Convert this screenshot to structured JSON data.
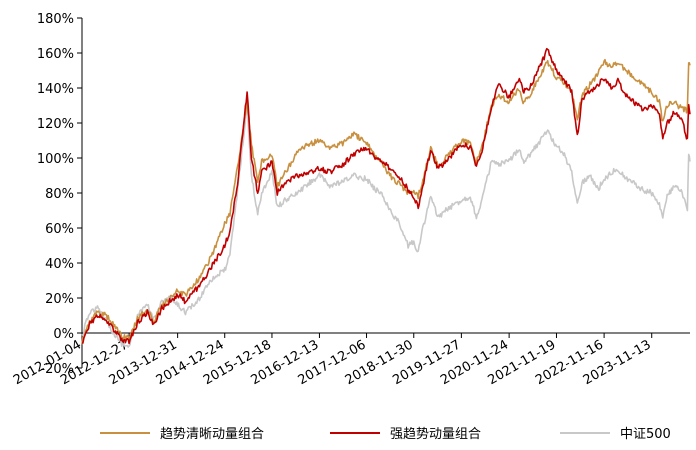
{
  "chart_data": {
    "type": "line",
    "title": "",
    "xlabel": "",
    "ylabel": "",
    "ylim": [
      -0.2,
      1.8
    ],
    "y_ticks": [
      -0.2,
      0.0,
      0.2,
      0.4,
      0.6,
      0.8,
      1.0,
      1.2,
      1.4,
      1.6,
      1.8
    ],
    "y_tick_labels": [
      "-20%",
      "0%",
      "20%",
      "40%",
      "60%",
      "80%",
      "100%",
      "120%",
      "140%",
      "160%",
      "180%"
    ],
    "x_range": [
      "2012-01-04",
      "2024-08-30"
    ],
    "x_tick_labels": [
      "2012-01-04",
      "2012-12-27",
      "2013-12-31",
      "2014-12-24",
      "2015-12-18",
      "2016-12-13",
      "2017-12-06",
      "2018-11-30",
      "2019-11-27",
      "2020-11-24",
      "2021-11-19",
      "2022-11-16",
      "2023-11-13"
    ],
    "grid": false,
    "legend_position": "bottom",
    "series": [
      {
        "name": "趋势清晰动量组合",
        "color": "#C8903F",
        "x": [
          "2012-01-04",
          "2012-03-01",
          "2012-05-01",
          "2012-07-01",
          "2012-09-01",
          "2012-11-01",
          "2012-12-27",
          "2013-03-01",
          "2013-05-15",
          "2013-07-01",
          "2013-09-01",
          "2013-11-01",
          "2013-12-31",
          "2014-03-01",
          "2014-06-01",
          "2014-09-01",
          "2014-12-24",
          "2015-02-01",
          "2015-04-01",
          "2015-06-12",
          "2015-07-15",
          "2015-09-01",
          "2015-10-01",
          "2015-12-18",
          "2016-01-28",
          "2016-04-01",
          "2016-07-01",
          "2016-10-01",
          "2016-12-13",
          "2017-03-01",
          "2017-06-01",
          "2017-09-01",
          "2017-12-06",
          "2018-02-09",
          "2018-04-01",
          "2018-06-01",
          "2018-08-01",
          "2018-10-18",
          "2018-11-30",
          "2019-01-03",
          "2019-02-01",
          "2019-04-08",
          "2019-06-01",
          "2019-08-01",
          "2019-11-27",
          "2020-02-03",
          "2020-03-20",
          "2020-05-01",
          "2020-07-13",
          "2020-09-01",
          "2020-11-24",
          "2021-02-10",
          "2021-03-10",
          "2021-05-01",
          "2021-07-01",
          "2021-09-13",
          "2021-11-19",
          "2022-01-04",
          "2022-03-15",
          "2022-04-26",
          "2022-06-01",
          "2022-08-01",
          "2022-10-01",
          "2022-11-16",
          "2023-01-15",
          "2023-03-01",
          "2023-05-01",
          "2023-07-01",
          "2023-09-01",
          "2023-11-13",
          "2024-01-10",
          "2024-02-05",
          "2024-03-10",
          "2024-05-01",
          "2024-07-01",
          "2024-08-10",
          "2024-08-20",
          "2024-08-30"
        ],
        "values": [
          -0.05,
          0.06,
          0.12,
          0.1,
          0.05,
          -0.02,
          -0.03,
          0.08,
          0.14,
          0.06,
          0.16,
          0.2,
          0.24,
          0.22,
          0.3,
          0.42,
          0.62,
          0.68,
          0.95,
          1.32,
          1.08,
          0.86,
          0.98,
          1.02,
          0.84,
          0.92,
          1.04,
          1.08,
          1.1,
          1.06,
          1.08,
          1.14,
          1.08,
          1.02,
          0.98,
          0.9,
          0.86,
          0.8,
          0.82,
          0.78,
          0.86,
          1.05,
          0.96,
          1.0,
          1.1,
          1.08,
          0.98,
          1.06,
          1.3,
          1.36,
          1.32,
          1.4,
          1.32,
          1.36,
          1.45,
          1.55,
          1.46,
          1.44,
          1.38,
          1.22,
          1.36,
          1.42,
          1.48,
          1.55,
          1.52,
          1.55,
          1.5,
          1.46,
          1.42,
          1.38,
          1.32,
          1.2,
          1.3,
          1.32,
          1.28,
          1.27,
          1.55,
          1.53
        ]
      },
      {
        "name": "强趋势动量组合",
        "color": "#C00000",
        "x": [
          "2012-01-04",
          "2012-03-01",
          "2012-05-01",
          "2012-07-01",
          "2012-09-01",
          "2012-11-01",
          "2012-12-27",
          "2013-03-01",
          "2013-05-15",
          "2013-07-01",
          "2013-09-01",
          "2013-11-01",
          "2013-12-31",
          "2014-03-01",
          "2014-06-01",
          "2014-09-01",
          "2014-12-24",
          "2015-02-01",
          "2015-04-01",
          "2015-06-12",
          "2015-07-15",
          "2015-09-01",
          "2015-10-01",
          "2015-12-18",
          "2016-01-28",
          "2016-04-01",
          "2016-07-01",
          "2016-10-01",
          "2016-12-13",
          "2017-03-01",
          "2017-06-01",
          "2017-09-01",
          "2017-12-06",
          "2018-02-09",
          "2018-04-01",
          "2018-06-01",
          "2018-08-01",
          "2018-10-18",
          "2018-11-30",
          "2019-01-03",
          "2019-02-01",
          "2019-04-08",
          "2019-06-01",
          "2019-08-01",
          "2019-11-27",
          "2020-02-03",
          "2020-03-20",
          "2020-05-01",
          "2020-07-13",
          "2020-09-01",
          "2020-11-24",
          "2021-02-10",
          "2021-03-10",
          "2021-05-01",
          "2021-07-01",
          "2021-09-13",
          "2021-11-19",
          "2022-01-04",
          "2022-03-15",
          "2022-04-26",
          "2022-06-01",
          "2022-08-01",
          "2022-10-01",
          "2022-11-16",
          "2023-01-15",
          "2023-03-01",
          "2023-05-01",
          "2023-07-01",
          "2023-09-01",
          "2023-11-13",
          "2024-01-10",
          "2024-02-05",
          "2024-03-10",
          "2024-05-01",
          "2024-07-01",
          "2024-08-10",
          "2024-08-20",
          "2024-08-30"
        ],
        "values": [
          -0.06,
          0.05,
          0.1,
          0.08,
          0.02,
          -0.04,
          -0.05,
          0.06,
          0.12,
          0.04,
          0.14,
          0.18,
          0.22,
          0.18,
          0.26,
          0.36,
          0.5,
          0.58,
          0.86,
          1.38,
          1.0,
          0.8,
          0.92,
          0.98,
          0.8,
          0.86,
          0.9,
          0.92,
          0.94,
          0.92,
          0.96,
          1.02,
          1.06,
          1.0,
          0.98,
          0.94,
          0.9,
          0.82,
          0.78,
          0.72,
          0.82,
          1.05,
          0.94,
          0.98,
          1.08,
          1.06,
          0.96,
          1.04,
          1.3,
          1.42,
          1.35,
          1.45,
          1.38,
          1.4,
          1.5,
          1.62,
          1.5,
          1.46,
          1.38,
          1.12,
          1.34,
          1.38,
          1.42,
          1.45,
          1.4,
          1.44,
          1.36,
          1.32,
          1.28,
          1.3,
          1.24,
          1.12,
          1.2,
          1.26,
          1.22,
          1.1,
          1.3,
          1.25
        ]
      },
      {
        "name": "中证500",
        "color": "#C8C8C8",
        "x": [
          "2012-01-04",
          "2012-03-01",
          "2012-05-01",
          "2012-07-01",
          "2012-09-01",
          "2012-11-01",
          "2012-12-27",
          "2013-03-01",
          "2013-05-15",
          "2013-07-01",
          "2013-09-01",
          "2013-11-01",
          "2013-12-31",
          "2014-03-01",
          "2014-06-01",
          "2014-09-01",
          "2014-12-24",
          "2015-02-01",
          "2015-04-01",
          "2015-06-12",
          "2015-07-15",
          "2015-09-01",
          "2015-10-01",
          "2015-12-18",
          "2016-01-28",
          "2016-04-01",
          "2016-07-01",
          "2016-10-01",
          "2016-12-13",
          "2017-03-01",
          "2017-06-01",
          "2017-09-01",
          "2017-12-06",
          "2018-02-09",
          "2018-04-01",
          "2018-06-01",
          "2018-08-01",
          "2018-10-18",
          "2018-11-30",
          "2019-01-03",
          "2019-02-01",
          "2019-04-08",
          "2019-06-01",
          "2019-08-01",
          "2019-11-27",
          "2020-02-03",
          "2020-03-20",
          "2020-05-01",
          "2020-07-13",
          "2020-09-01",
          "2020-11-24",
          "2021-02-10",
          "2021-03-10",
          "2021-05-01",
          "2021-07-01",
          "2021-09-13",
          "2021-11-19",
          "2022-01-04",
          "2022-03-15",
          "2022-04-26",
          "2022-06-01",
          "2022-08-01",
          "2022-10-01",
          "2022-11-16",
          "2023-01-15",
          "2023-03-01",
          "2023-05-01",
          "2023-07-01",
          "2023-09-01",
          "2023-11-13",
          "2024-01-10",
          "2024-02-05",
          "2024-03-10",
          "2024-05-01",
          "2024-07-01",
          "2024-08-10",
          "2024-08-20",
          "2024-08-30"
        ],
        "values": [
          -0.02,
          0.12,
          0.14,
          0.08,
          0.0,
          -0.06,
          -0.08,
          0.1,
          0.16,
          0.08,
          0.18,
          0.2,
          0.16,
          0.12,
          0.18,
          0.3,
          0.36,
          0.44,
          0.82,
          1.3,
          0.9,
          0.68,
          0.8,
          0.92,
          0.72,
          0.76,
          0.8,
          0.86,
          0.9,
          0.84,
          0.86,
          0.9,
          0.88,
          0.82,
          0.8,
          0.7,
          0.64,
          0.5,
          0.52,
          0.46,
          0.58,
          0.78,
          0.66,
          0.7,
          0.76,
          0.78,
          0.66,
          0.76,
          0.98,
          0.96,
          0.98,
          1.06,
          0.98,
          1.02,
          1.08,
          1.16,
          1.06,
          1.04,
          0.92,
          0.74,
          0.86,
          0.9,
          0.82,
          0.88,
          0.92,
          0.94,
          0.88,
          0.86,
          0.82,
          0.8,
          0.74,
          0.66,
          0.78,
          0.84,
          0.8,
          0.7,
          1.02,
          0.98
        ]
      }
    ]
  }
}
